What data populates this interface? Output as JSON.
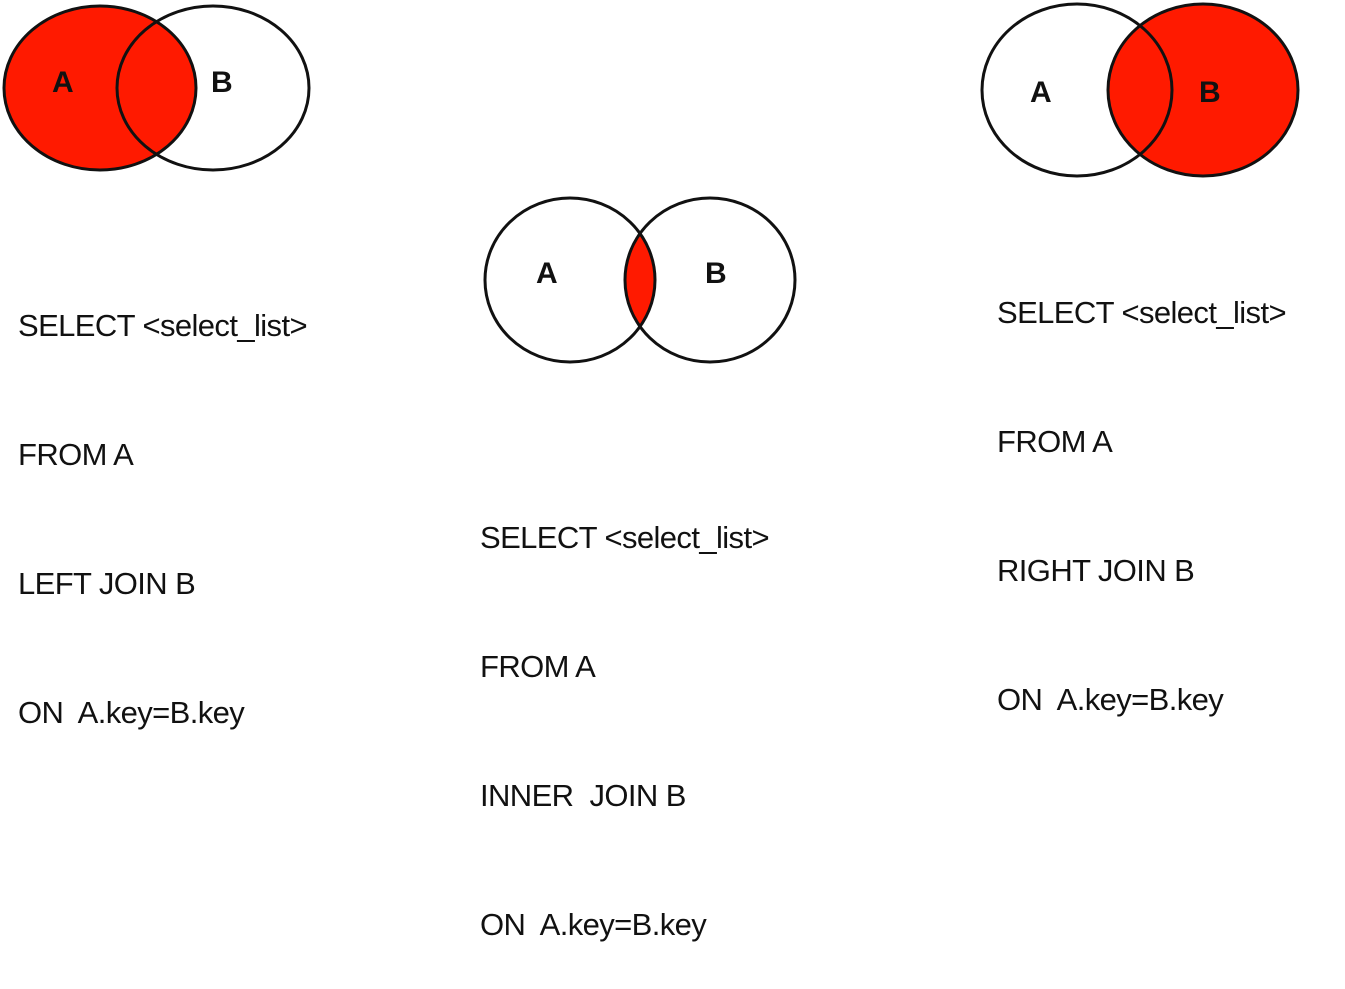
{
  "colors": {
    "highlight": "#ff1a00",
    "outline": "#111111",
    "background": "#ffffff"
  },
  "left_join": {
    "label_a": "A",
    "label_b": "B",
    "highlighted_region": "A",
    "sql": [
      "SELECT <select_list>",
      "FROM A",
      "LEFT JOIN B",
      "ON  A.key=B.key"
    ]
  },
  "inner_join": {
    "label_a": "A",
    "label_b": "B",
    "highlighted_region": "A∩B",
    "sql": [
      "SELECT <select_list>",
      "FROM A",
      "INNER  JOIN B",
      "ON  A.key=B.key"
    ]
  },
  "right_join": {
    "label_a": "A",
    "label_b": "B",
    "highlighted_region": "B",
    "sql": [
      "SELECT <select_list>",
      "FROM A",
      "RIGHT JOIN B",
      "ON  A.key=B.key"
    ]
  }
}
